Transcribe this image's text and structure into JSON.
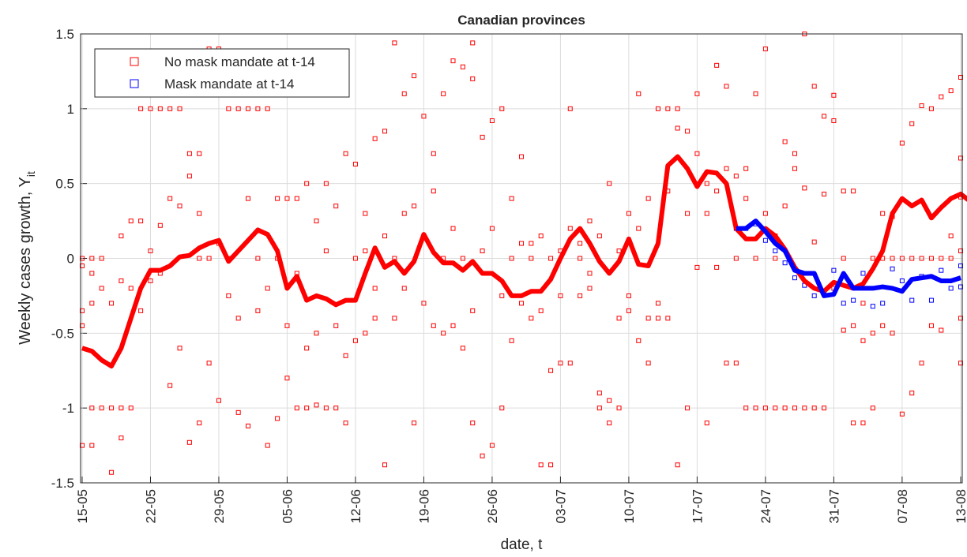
{
  "chart_data": {
    "type": "line-scatter",
    "title": "Canadian provinces",
    "xlabel": "date, t",
    "ylabel": {
      "text": "Weekly cases growth, Y",
      "subscript": "it"
    },
    "xlim": [
      -0.16,
      90.16
    ],
    "ylim": [
      -1.5,
      1.5
    ],
    "xticks": [
      {
        "value": 0,
        "label": "15-05"
      },
      {
        "value": 7,
        "label": "22-05"
      },
      {
        "value": 14,
        "label": "29-05"
      },
      {
        "value": 21,
        "label": "05-06"
      },
      {
        "value": 28,
        "label": "12-06"
      },
      {
        "value": 35,
        "label": "19-06"
      },
      {
        "value": 42,
        "label": "26-06"
      },
      {
        "value": 49,
        "label": "03-07"
      },
      {
        "value": 56,
        "label": "10-07"
      },
      {
        "value": 63,
        "label": "17-07"
      },
      {
        "value": 70,
        "label": "24-07"
      },
      {
        "value": 77,
        "label": "31-07"
      },
      {
        "value": 84,
        "label": "07-08"
      },
      {
        "value": 90,
        "label": "13-08"
      }
    ],
    "yticks": [
      -1.5,
      -1,
      -0.5,
      0,
      0.5,
      1,
      1.5
    ],
    "grid": true,
    "legend": "upper left",
    "scatter": [
      {
        "name": "No mask mandate at t-14",
        "color": "#ff0000",
        "x": [
          0,
          0,
          0,
          0,
          0,
          1,
          1,
          1,
          1,
          1,
          2,
          2,
          2,
          3,
          3,
          3,
          4,
          4,
          4,
          4,
          5,
          5,
          5,
          6,
          6,
          6,
          7,
          7,
          7,
          8,
          8,
          8,
          9,
          9,
          9,
          10,
          10,
          10,
          11,
          11,
          11,
          12,
          12,
          12,
          12,
          13,
          13,
          13,
          14,
          14,
          14,
          15,
          15,
          15,
          16,
          16,
          16,
          17,
          17,
          17,
          18,
          18,
          18,
          19,
          19,
          19,
          20,
          20,
          20,
          21,
          21,
          21,
          22,
          22,
          22,
          23,
          23,
          23,
          24,
          24,
          24,
          25,
          25,
          25,
          26,
          26,
          26,
          27,
          27,
          27,
          28,
          28,
          28,
          29,
          29,
          29,
          30,
          30,
          30,
          31,
          31,
          31,
          32,
          32,
          32,
          33,
          33,
          33,
          34,
          34,
          34,
          35,
          35,
          35,
          36,
          36,
          36,
          37,
          37,
          37,
          38,
          38,
          38,
          39,
          39,
          39,
          40,
          40,
          40,
          40,
          41,
          41,
          41,
          42,
          42,
          42,
          43,
          43,
          43,
          44,
          44,
          44,
          45,
          45,
          45,
          46,
          46,
          46,
          47,
          47,
          47,
          48,
          48,
          48,
          49,
          49,
          49,
          50,
          50,
          50,
          51,
          51,
          51,
          52,
          52,
          52,
          53,
          53,
          53,
          54,
          54,
          54,
          55,
          55,
          55,
          56,
          56,
          56,
          57,
          57,
          57,
          58,
          58,
          58,
          59,
          59,
          59,
          60,
          60,
          60,
          61,
          61,
          61,
          62,
          62,
          62,
          63,
          63,
          63,
          64,
          64,
          64,
          65,
          65,
          65,
          66,
          66,
          66,
          67,
          67,
          67,
          68,
          68,
          68,
          69,
          69,
          69,
          70,
          70,
          70,
          71,
          71,
          71,
          72,
          72,
          72,
          73,
          73,
          73,
          74,
          74,
          74,
          75,
          75,
          75,
          76,
          76,
          76,
          77,
          77,
          77,
          78,
          78,
          78,
          79,
          79,
          79,
          80,
          80,
          80,
          81,
          81,
          81,
          82,
          82,
          82,
          83,
          83,
          83,
          84,
          84,
          84,
          85,
          85,
          85,
          86,
          86,
          86,
          87,
          87,
          87,
          88,
          88,
          88,
          89,
          89,
          89,
          90,
          90,
          90,
          90,
          90,
          90
        ],
        "values": [
          0,
          -0.35,
          -0.45,
          -1.25,
          -0.05,
          0,
          -0.1,
          -1,
          -1.25,
          -0.3,
          0,
          -0.2,
          -1,
          -1.43,
          -0.3,
          -1,
          0.15,
          -0.15,
          -1,
          -1.2,
          0.25,
          -0.2,
          -1,
          1,
          0.25,
          -0.35,
          1,
          0.05,
          -0.15,
          1,
          0.22,
          -0.1,
          1,
          0.4,
          -0.85,
          1,
          0.35,
          -0.6,
          0.7,
          -1.23,
          0.55,
          0.7,
          0.3,
          -1.1,
          0,
          1.4,
          -0.7,
          0,
          1.4,
          -0.95,
          0.1,
          1,
          0,
          -0.25,
          1,
          -0.4,
          -1.03,
          1,
          0.4,
          -1.12,
          1,
          -0.35,
          0,
          1,
          -0.2,
          -1.25,
          0.4,
          0,
          -1.07,
          0.4,
          -0.45,
          -0.8,
          0.4,
          -0.1,
          -1,
          0.5,
          -1,
          -0.6,
          0.25,
          -0.98,
          -0.5,
          0.5,
          -1,
          0.05,
          0.35,
          -1,
          -0.45,
          0.7,
          -0.65,
          -1.1,
          0.63,
          -0.55,
          0,
          0.3,
          -0.5,
          0.05,
          0.8,
          -0.4,
          -0.2,
          0.85,
          0.15,
          -1.38,
          1.44,
          -0.4,
          0,
          1.1,
          0.3,
          -0.2,
          1.22,
          -1.1,
          0.35,
          0.95,
          -0.3,
          0.15,
          0.45,
          -0.45,
          0.7,
          1.1,
          -0.5,
          0,
          1.32,
          -0.45,
          0.2,
          1.28,
          -0.6,
          0,
          1.44,
          1.2,
          -0.35,
          -1.1,
          0.81,
          -1.32,
          0.05,
          0.92,
          -1.25,
          0.2,
          1,
          -1,
          -0.25,
          0.4,
          -0.55,
          0,
          0.68,
          0.1,
          -0.3,
          0.1,
          -0.4,
          0,
          -1.38,
          0.15,
          -0.35,
          -1.38,
          -0.75,
          0,
          -0.7,
          0.05,
          -0.25,
          1,
          -0.7,
          0.2,
          -0.25,
          0.1,
          0,
          -0.2,
          0.25,
          -0.1,
          -0.9,
          -1,
          0.15,
          -0.95,
          -1.1,
          0.5,
          -1,
          -0.4,
          0.05,
          0.3,
          -0.25,
          -0.35,
          1.1,
          -0.55,
          0.2,
          -0.7,
          -0.4,
          0.4,
          1,
          -0.4,
          -0.3,
          1,
          -0.4,
          0.45,
          1,
          0.87,
          -1.38,
          0.85,
          -1,
          0.3,
          0.7,
          1.1,
          -0.06,
          -1.1,
          0.5,
          0.3,
          1.29,
          0.45,
          -0.06,
          -0.7,
          0.6,
          1.15,
          -0.7,
          0.55,
          0,
          -1,
          0.6,
          0.4,
          -1,
          1.1,
          0,
          -1,
          1.4,
          0.3,
          -1,
          0.15,
          0,
          0.35,
          0.78,
          -1,
          0.7,
          0.6,
          -1,
          1.5,
          0.47,
          -1,
          0.11,
          1.15,
          -1,
          0.95,
          0.43,
          -1,
          1.09,
          0.92,
          -0.2,
          0.45,
          -0.48,
          0,
          0.45,
          -0.45,
          -1.1,
          -0.3,
          -0.55,
          -1.1,
          -0.5,
          -1,
          0,
          0.3,
          -0.45,
          0,
          -0.5,
          0.28,
          0,
          0.77,
          -1.04,
          0,
          0.9,
          -0.9,
          0,
          1.02,
          -0.7,
          0,
          1,
          -0.45,
          0,
          1.08,
          -0.48,
          0,
          1.12,
          0.15,
          0,
          1.21,
          -0.4,
          0.67,
          -0.7,
          0.41,
          0.05
        ]
      },
      {
        "name": "Mask mandate at t-14",
        "color": "#0000ff",
        "x": [
          67,
          68,
          69,
          70,
          71,
          72,
          73,
          74,
          75,
          76,
          77,
          78,
          79,
          80,
          81,
          82,
          83,
          84,
          85,
          86,
          87,
          88,
          89,
          90,
          90
        ],
        "values": [
          0.2,
          0.2,
          0.23,
          0.12,
          0.05,
          -0.03,
          -0.13,
          -0.18,
          -0.25,
          -0.22,
          -0.08,
          -0.3,
          -0.28,
          -0.1,
          -0.32,
          -0.3,
          -0.07,
          -0.15,
          -0.28,
          -0.12,
          -0.28,
          -0.08,
          -0.2,
          -0.05,
          -0.19
        ]
      }
    ],
    "lines": [
      {
        "color": "#ff0000",
        "values": [
          -0.6,
          -0.62,
          -0.68,
          -0.72,
          -0.6,
          -0.4,
          -0.2,
          -0.08,
          -0.08,
          -0.05,
          0.01,
          0.02,
          0.07,
          0.1,
          0.12,
          -0.02,
          0.05,
          0.12,
          0.19,
          0.16,
          0.05,
          -0.2,
          -0.12,
          -0.28,
          -0.25,
          -0.27,
          -0.31,
          -0.28,
          -0.28,
          -0.1,
          0.07,
          -0.06,
          -0.02,
          -0.1,
          -0.02,
          0.16,
          0.04,
          -0.03,
          -0.03,
          -0.08,
          -0.02,
          -0.1,
          -0.1,
          -0.15,
          -0.25,
          -0.25,
          -0.22,
          -0.22,
          -0.14,
          0,
          0.13,
          0.2,
          0.1,
          -0.02,
          -0.1,
          -0.02,
          0.13,
          -0.04,
          -0.05,
          0.1,
          0.62,
          0.68,
          0.6,
          0.48,
          0.58,
          0.57,
          0.5,
          0.2,
          0.13,
          0.13,
          0.2,
          0.15,
          0.06,
          -0.06,
          -0.15,
          -0.2,
          -0.22,
          -0.16,
          -0.18,
          -0.2,
          -0.17,
          -0.07,
          0.05,
          0.3,
          0.4,
          0.35,
          0.39,
          0.27,
          0.34,
          0.4,
          0.43,
          0.38,
          0.37
        ]
      },
      {
        "color": "#0000ff",
        "x": [
          67,
          68,
          69,
          70,
          71,
          72,
          73,
          74,
          75,
          76,
          77,
          78,
          79,
          80,
          81,
          82,
          83,
          84,
          85,
          86,
          87,
          88,
          89,
          90
        ],
        "values": [
          0.2,
          0.2,
          0.25,
          0.18,
          0.1,
          0.05,
          -0.08,
          -0.1,
          -0.1,
          -0.25,
          -0.24,
          -0.1,
          -0.2,
          -0.2,
          -0.2,
          -0.19,
          -0.2,
          -0.22,
          -0.14,
          -0.13,
          -0.12,
          -0.15,
          -0.15,
          -0.13
        ]
      }
    ]
  }
}
